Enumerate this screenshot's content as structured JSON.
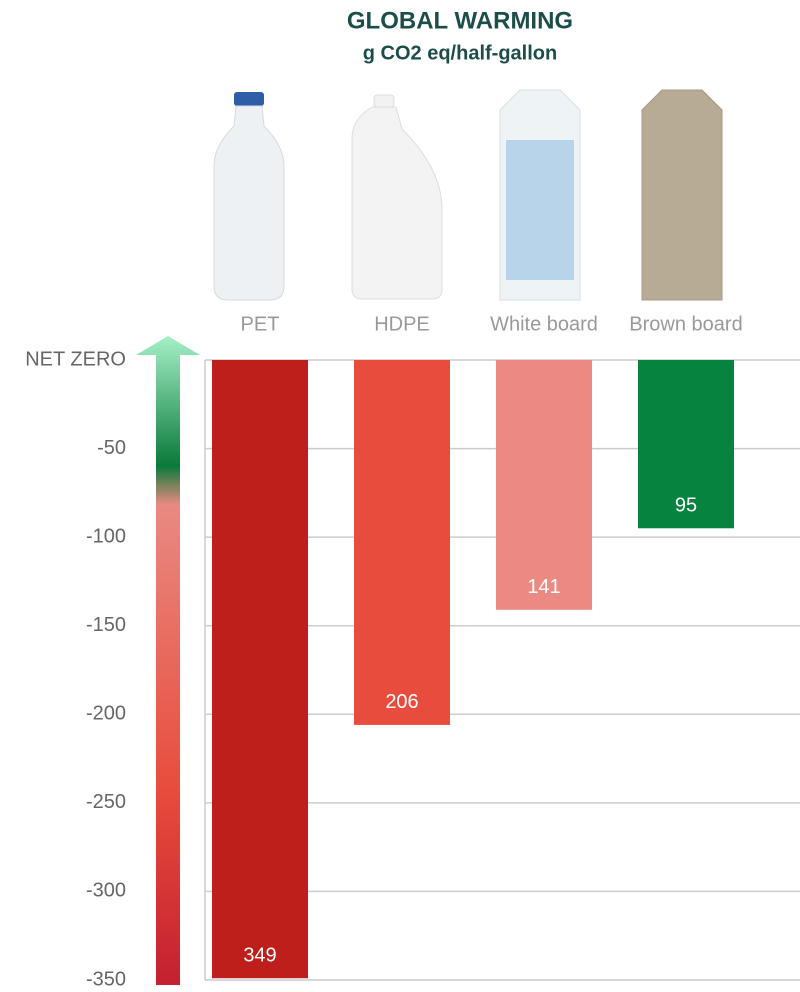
{
  "chart_data": {
    "type": "bar",
    "title": "GLOBAL WARMING",
    "subtitle": "g CO2 eq/half-gallon",
    "categories": [
      "PET",
      "HDPE",
      "White board",
      "Brown board"
    ],
    "values": [
      -349,
      -206,
      -141,
      -95
    ],
    "value_labels": [
      "349",
      "206",
      "141",
      "95"
    ],
    "colors": [
      "#be1f1b",
      "#e84c3c",
      "#ea8a83",
      "#06833f"
    ],
    "ylim": [
      -350,
      0
    ],
    "yticks": [
      {
        "value": 0,
        "label": "NET ZERO"
      },
      -50,
      -100,
      -150,
      -200,
      -250,
      -300,
      -350
    ],
    "grid": true
  }
}
